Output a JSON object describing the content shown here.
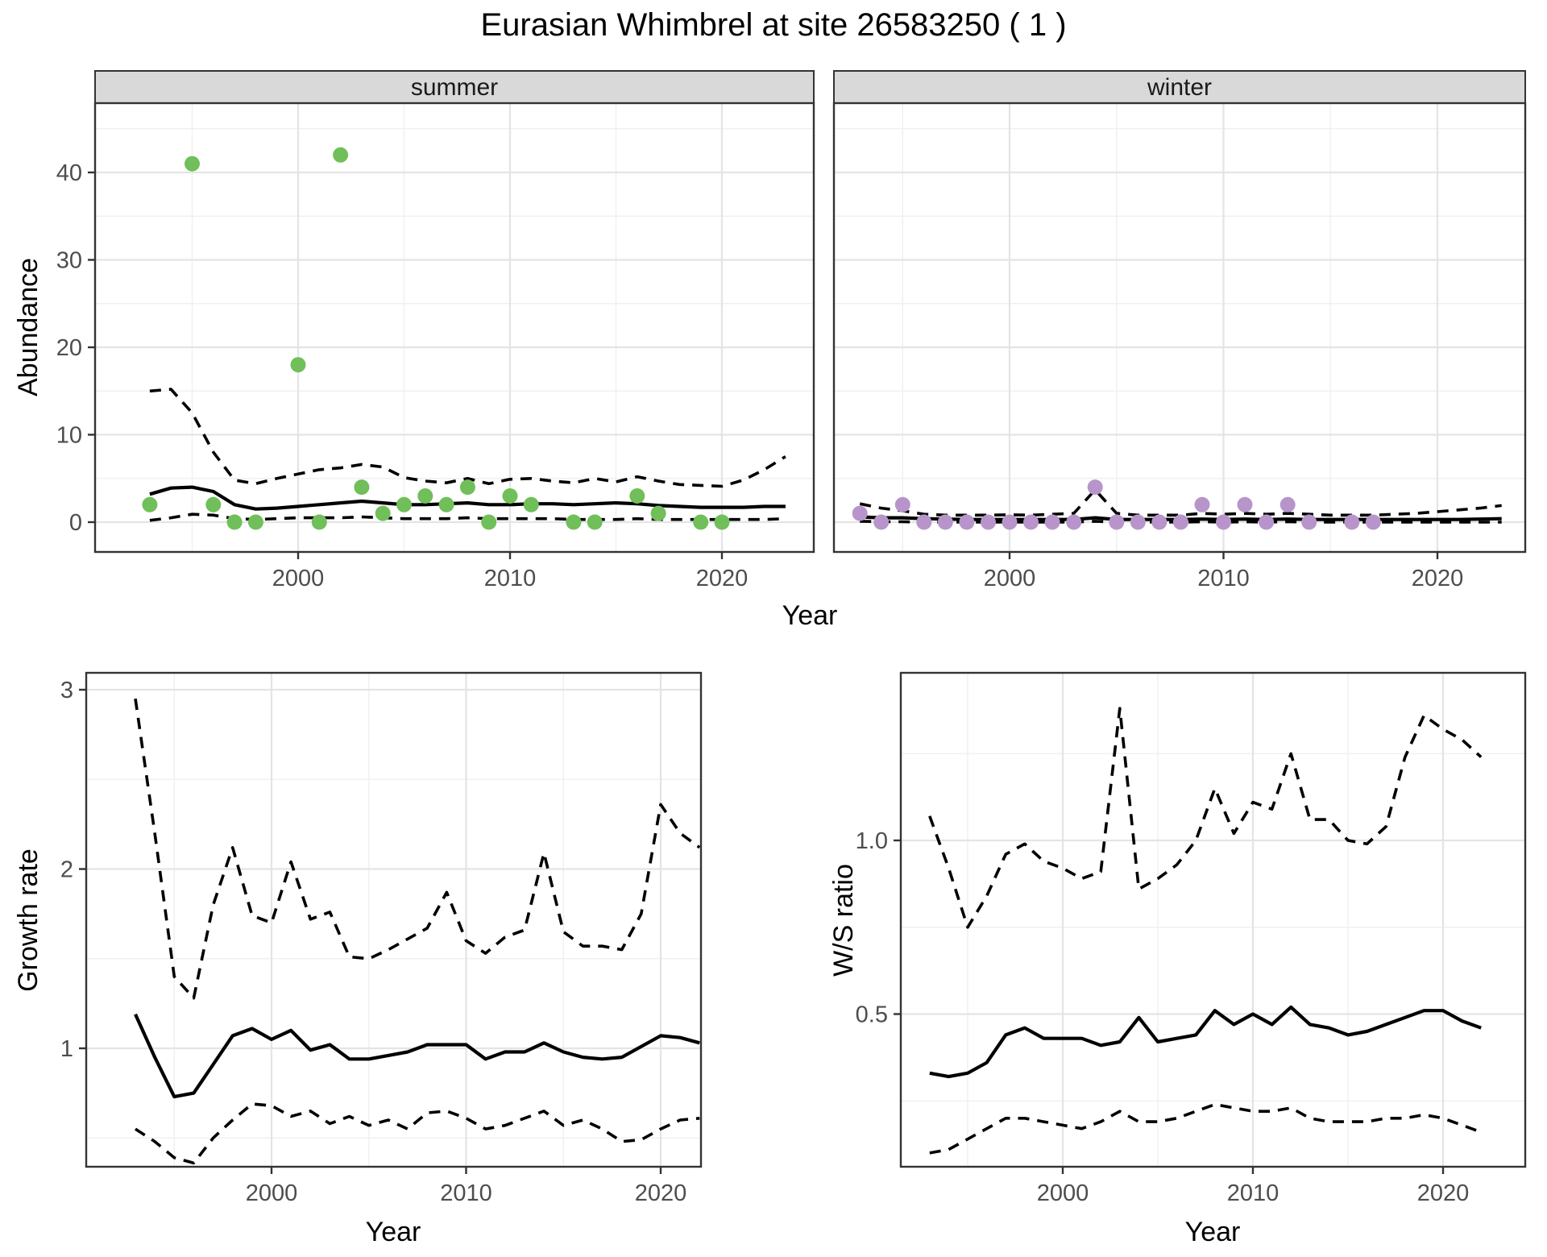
{
  "title": "Eurasian Whimbrel at site 26583250 ( 1 )",
  "style": {
    "panel_background": "#ffffff",
    "panel_border": "#333333",
    "strip_background": "#d9d9d9",
    "grid_major": "#e4e4e4",
    "grid_minor": "#f0f0f0",
    "line_color": "#000000",
    "summer_point_color": "#70bf5a",
    "winter_point_color": "#b795cb",
    "tick_label_color": "#4d4d4d"
  },
  "chart_data": [
    {
      "id": "abundance-summer",
      "type": "scatter+line",
      "facet_label": "summer",
      "xlabel": "Year",
      "ylabel": "Abundance",
      "grid": true,
      "legend": "none",
      "xlim": [
        1990.5,
        2024.5
      ],
      "ylim": [
        -3,
        48
      ],
      "x_ticks": [
        2000,
        2010,
        2020
      ],
      "x_tick_labels": [
        "2000",
        "2010",
        "2020"
      ],
      "x_minor_ticks": [
        1995,
        2005,
        2015,
        2025
      ],
      "y_ticks": [
        0,
        10,
        20,
        30,
        40
      ],
      "y_tick_labels": [
        "0",
        "10",
        "20",
        "30",
        "40"
      ],
      "y_minor_ticks": [
        5,
        15,
        25,
        35,
        45
      ],
      "points": {
        "color": "#70bf5a",
        "x": [
          1993,
          1995,
          1996,
          1997,
          1998,
          2000,
          2001,
          2002,
          2003,
          2004,
          2005,
          2006,
          2007,
          2008,
          2009,
          2010,
          2011,
          2013,
          2014,
          2016,
          2017,
          2019,
          2020
        ],
        "y": [
          2,
          41,
          2,
          0,
          0,
          18,
          0,
          42,
          4,
          1,
          2,
          3,
          2,
          4,
          0,
          3,
          2,
          0,
          0,
          3,
          1,
          0,
          0
        ]
      },
      "series": [
        {
          "name": "median",
          "style": "solid",
          "x_start": 1993,
          "values": [
            3.2,
            3.9,
            4.0,
            3.5,
            2.0,
            1.5,
            1.6,
            1.8,
            2.0,
            2.2,
            2.4,
            2.2,
            2.0,
            2.0,
            2.1,
            2.2,
            2.0,
            2.0,
            2.1,
            2.1,
            2.0,
            2.1,
            2.2,
            2.1,
            1.9,
            1.8,
            1.7,
            1.7,
            1.7,
            1.8,
            1.8
          ]
        },
        {
          "name": "upper_95ci",
          "style": "dashed",
          "x_start": 1993,
          "values": [
            15.0,
            15.2,
            12.5,
            8.0,
            4.8,
            4.4,
            5.0,
            5.5,
            6.0,
            6.2,
            6.6,
            6.3,
            5.1,
            4.7,
            4.5,
            5.0,
            4.4,
            4.9,
            5.0,
            4.7,
            4.5,
            5.0,
            4.6,
            5.2,
            4.7,
            4.3,
            4.2,
            4.1,
            4.8,
            6.0,
            7.5
          ]
        },
        {
          "name": "lower_95ci",
          "style": "dashed",
          "x_start": 1993,
          "values": [
            0.2,
            0.5,
            0.9,
            0.8,
            0.4,
            0.3,
            0.4,
            0.5,
            0.5,
            0.5,
            0.6,
            0.5,
            0.4,
            0.4,
            0.4,
            0.5,
            0.4,
            0.4,
            0.4,
            0.4,
            0.3,
            0.3,
            0.3,
            0.4,
            0.3,
            0.3,
            0.3,
            0.3,
            0.3,
            0.3,
            0.4
          ]
        }
      ]
    },
    {
      "id": "abundance-winter",
      "type": "scatter+line",
      "facet_label": "winter",
      "xlabel": "Year",
      "ylabel": "Abundance",
      "grid": true,
      "legend": "none",
      "xlim": [
        1991.5,
        2024.5
      ],
      "ylim": [
        -3,
        48
      ],
      "x_ticks": [
        2000,
        2010,
        2020
      ],
      "x_tick_labels": [
        "2000",
        "2010",
        "2020"
      ],
      "x_minor_ticks": [
        1995,
        2005,
        2015,
        2025
      ],
      "y_ticks": [
        0,
        10,
        20,
        30,
        40
      ],
      "y_tick_labels": [
        "0",
        "10",
        "20",
        "30",
        "40"
      ],
      "y_minor_ticks": [
        5,
        15,
        25,
        35,
        45
      ],
      "points": {
        "color": "#b795cb",
        "x": [
          1993,
          1994,
          1995,
          1996,
          1997,
          1998,
          1999,
          2000,
          2001,
          2002,
          2003,
          2004,
          2005,
          2006,
          2007,
          2008,
          2009,
          2010,
          2011,
          2012,
          2013,
          2014,
          2016,
          2017
        ],
        "y": [
          1,
          0,
          2,
          0,
          0,
          0,
          0,
          0,
          0,
          0,
          0,
          4,
          0,
          0,
          0,
          0,
          2,
          0,
          2,
          0,
          2,
          0,
          0,
          0
        ]
      },
      "series": [
        {
          "name": "median",
          "style": "solid",
          "x_start": 1993,
          "values": [
            0.6,
            0.5,
            0.5,
            0.4,
            0.35,
            0.3,
            0.3,
            0.3,
            0.3,
            0.3,
            0.3,
            0.5,
            0.3,
            0.3,
            0.3,
            0.3,
            0.35,
            0.3,
            0.35,
            0.3,
            0.35,
            0.3,
            0.3,
            0.3,
            0.3,
            0.3,
            0.3,
            0.3,
            0.3,
            0.35,
            0.4
          ]
        },
        {
          "name": "upper_95ci",
          "style": "dashed",
          "x_start": 1993,
          "values": [
            2.1,
            1.6,
            1.3,
            0.9,
            0.8,
            0.8,
            0.8,
            0.85,
            0.8,
            0.9,
            1.0,
            3.7,
            1.0,
            0.8,
            0.8,
            0.8,
            1.0,
            0.9,
            1.0,
            0.9,
            1.0,
            0.9,
            0.8,
            0.8,
            0.8,
            0.9,
            1.0,
            1.2,
            1.4,
            1.6,
            1.9
          ]
        },
        {
          "name": "lower_95ci",
          "style": "dashed",
          "x_start": 1993,
          "values": [
            0.1,
            0.05,
            0.05,
            0,
            0,
            0,
            0,
            0,
            0,
            0,
            0,
            0.1,
            0,
            0,
            0,
            0,
            0.05,
            0,
            0.05,
            0,
            0.05,
            0,
            0,
            0,
            0,
            0,
            0,
            0,
            0,
            0,
            0
          ]
        }
      ]
    },
    {
      "id": "growth-rate",
      "type": "line",
      "facet_label": "",
      "xlabel": "Year",
      "ylabel": "Growth rate",
      "grid": true,
      "legend": "none",
      "xlim": [
        1990.5,
        2024.5
      ],
      "ylim": [
        0.36,
        3.09
      ],
      "x_ticks": [
        2000,
        2010,
        2020
      ],
      "x_tick_labels": [
        "2000",
        "2010",
        "2020"
      ],
      "x_minor_ticks": [
        1995,
        2005,
        2015
      ],
      "y_ticks": [
        1,
        2,
        3
      ],
      "y_tick_labels": [
        "1",
        "2",
        "3"
      ],
      "y_minor_ticks": [
        0.5,
        1.5,
        2.5
      ],
      "points": null,
      "series": [
        {
          "name": "median",
          "style": "solid",
          "x_start": 1993,
          "values": [
            1.19,
            0.95,
            0.73,
            0.75,
            0.91,
            1.07,
            1.11,
            1.05,
            1.1,
            0.99,
            1.02,
            0.94,
            0.94,
            0.96,
            0.98,
            1.02,
            1.02,
            1.02,
            0.94,
            0.98,
            0.98,
            1.03,
            0.98,
            0.95,
            0.94,
            0.95,
            1.01,
            1.07,
            1.06,
            1.03
          ]
        },
        {
          "name": "upper_95ci",
          "style": "dashed",
          "x_start": 1993,
          "values": [
            2.95,
            2.2,
            1.4,
            1.28,
            1.8,
            2.12,
            1.74,
            1.7,
            2.04,
            1.72,
            1.76,
            1.51,
            1.5,
            1.55,
            1.61,
            1.67,
            1.87,
            1.6,
            1.53,
            1.62,
            1.66,
            2.09,
            1.65,
            1.57,
            1.57,
            1.55,
            1.75,
            2.36,
            2.2,
            2.12
          ]
        },
        {
          "name": "lower_95ci",
          "style": "dashed",
          "x_start": 1993,
          "values": [
            0.55,
            0.48,
            0.39,
            0.36,
            0.5,
            0.6,
            0.69,
            0.68,
            0.62,
            0.65,
            0.58,
            0.62,
            0.57,
            0.6,
            0.55,
            0.64,
            0.65,
            0.61,
            0.55,
            0.57,
            0.61,
            0.65,
            0.57,
            0.6,
            0.55,
            0.48,
            0.49,
            0.55,
            0.6,
            0.61
          ]
        }
      ]
    },
    {
      "id": "ws-ratio",
      "type": "line",
      "facet_label": "",
      "xlabel": "Year",
      "ylabel": "W/S ratio",
      "grid": true,
      "legend": "none",
      "xlim": [
        1991.5,
        2024.5
      ],
      "ylim": [
        0.06,
        1.48
      ],
      "x_ticks": [
        2000,
        2010,
        2020
      ],
      "x_tick_labels": [
        "2000",
        "2010",
        "2020"
      ],
      "x_minor_ticks": [
        1995,
        2005,
        2015
      ],
      "y_ticks": [
        0.5,
        1.0
      ],
      "y_tick_labels": [
        "0.5",
        "1.0"
      ],
      "y_minor_ticks": [
        0.25,
        0.75,
        1.25
      ],
      "points": null,
      "series": [
        {
          "name": "median",
          "style": "solid",
          "x_start": 1993,
          "values": [
            0.33,
            0.32,
            0.33,
            0.36,
            0.44,
            0.46,
            0.43,
            0.43,
            0.43,
            0.41,
            0.42,
            0.49,
            0.42,
            0.43,
            0.44,
            0.51,
            0.47,
            0.5,
            0.47,
            0.52,
            0.47,
            0.46,
            0.44,
            0.45,
            0.47,
            0.49,
            0.51,
            0.51,
            0.48,
            0.46
          ]
        },
        {
          "name": "upper_95ci",
          "style": "dashed",
          "x_start": 1993,
          "values": [
            1.07,
            0.92,
            0.75,
            0.84,
            0.96,
            0.99,
            0.94,
            0.92,
            0.89,
            0.91,
            1.38,
            0.86,
            0.89,
            0.93,
            1.0,
            1.15,
            1.02,
            1.11,
            1.09,
            1.25,
            1.06,
            1.06,
            1.0,
            0.99,
            1.04,
            1.24,
            1.36,
            1.32,
            1.29,
            1.24
          ]
        },
        {
          "name": "lower_95ci",
          "style": "dashed",
          "x_start": 1993,
          "values": [
            0.1,
            0.11,
            0.14,
            0.17,
            0.2,
            0.2,
            0.19,
            0.18,
            0.17,
            0.19,
            0.22,
            0.19,
            0.19,
            0.2,
            0.22,
            0.24,
            0.23,
            0.22,
            0.22,
            0.23,
            0.2,
            0.19,
            0.19,
            0.19,
            0.2,
            0.2,
            0.21,
            0.2,
            0.18,
            0.16
          ]
        }
      ]
    }
  ]
}
